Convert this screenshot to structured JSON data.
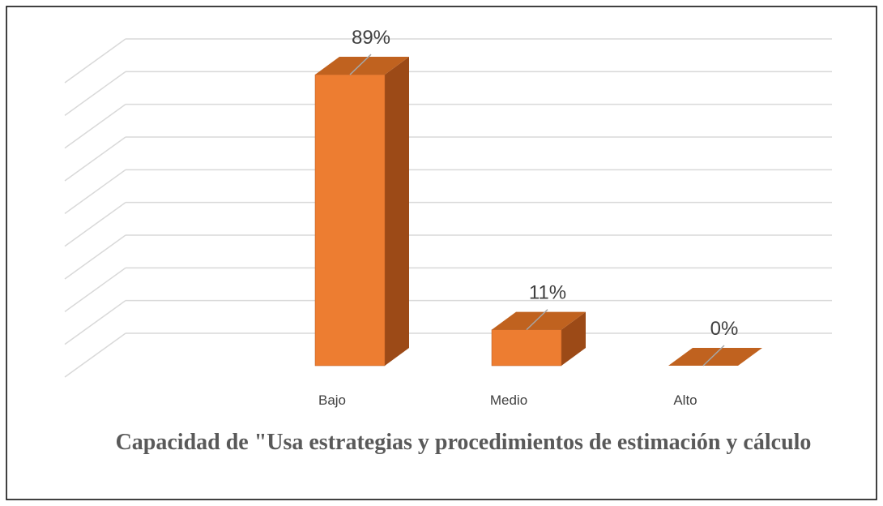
{
  "chart_data": {
    "type": "bar3d",
    "title": "Capacidad de \"Usa estrategias y procedimientos de estimación y cálculo",
    "categories": [
      "Bajo",
      "Medio",
      "Alto"
    ],
    "values": [
      89,
      11,
      0
    ],
    "value_labels": [
      "89%",
      "11%",
      "0%"
    ],
    "color": "#ed7d31",
    "ylim": [
      0,
      90
    ],
    "yticks": [
      0,
      10,
      20,
      30,
      40,
      50,
      60,
      70,
      80,
      90
    ],
    "grid": true
  }
}
